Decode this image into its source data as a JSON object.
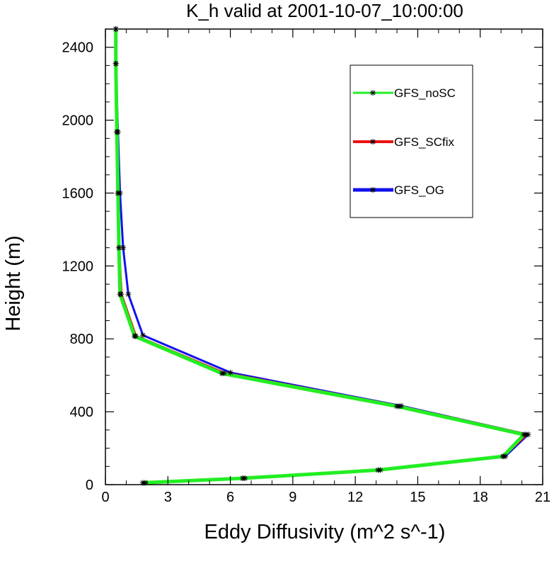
{
  "chart_data": {
    "type": "line",
    "title": "K_h valid at 2001-10-07_10:00:00",
    "xlabel": "Eddy Diffusivity (m^2 s^-1)",
    "ylabel": "Height (m)",
    "xlim": [
      0,
      21
    ],
    "ylim": [
      0,
      2500
    ],
    "xticks": [
      0,
      3,
      6,
      9,
      12,
      15,
      18,
      21
    ],
    "yticks": [
      0,
      400,
      800,
      1200,
      1600,
      2000,
      2400
    ],
    "legend_position": "top-right",
    "grid": false,
    "series": [
      {
        "name": "GFS_noSC",
        "color": "#22ee22",
        "points": [
          [
            1.8,
            10
          ],
          [
            6.6,
            35
          ],
          [
            13.1,
            80
          ],
          [
            19.1,
            155
          ],
          [
            20.1,
            275
          ],
          [
            14.0,
            430
          ],
          [
            5.6,
            610
          ],
          [
            1.4,
            815
          ],
          [
            0.7,
            1045
          ],
          [
            0.65,
            1300
          ],
          [
            0.6,
            1600
          ],
          [
            0.55,
            1935
          ],
          [
            0.5,
            2310
          ],
          [
            0.5,
            2500
          ]
        ]
      },
      {
        "name": "GFS_SCfix",
        "color": "#ee1111",
        "points": [
          [
            1.8,
            10
          ],
          [
            6.6,
            35
          ],
          [
            13.1,
            80
          ],
          [
            19.1,
            155
          ],
          [
            20.2,
            275
          ],
          [
            14.1,
            430
          ],
          [
            5.7,
            612
          ],
          [
            1.45,
            815
          ],
          [
            0.75,
            1045
          ],
          [
            0.65,
            1300
          ],
          [
            0.6,
            1600
          ],
          [
            0.55,
            1935
          ],
          [
            0.5,
            2310
          ],
          [
            0.5,
            2500
          ]
        ]
      },
      {
        "name": "GFS_OG",
        "color": "#1111ee",
        "points": [
          [
            1.9,
            10
          ],
          [
            6.7,
            35
          ],
          [
            13.2,
            80
          ],
          [
            19.2,
            155
          ],
          [
            20.3,
            275
          ],
          [
            14.2,
            432
          ],
          [
            6.0,
            615
          ],
          [
            1.8,
            820
          ],
          [
            1.1,
            1045
          ],
          [
            0.85,
            1300
          ],
          [
            0.7,
            1600
          ],
          [
            0.6,
            1935
          ],
          [
            0.5,
            2310
          ],
          [
            0.5,
            2500
          ]
        ]
      }
    ]
  }
}
